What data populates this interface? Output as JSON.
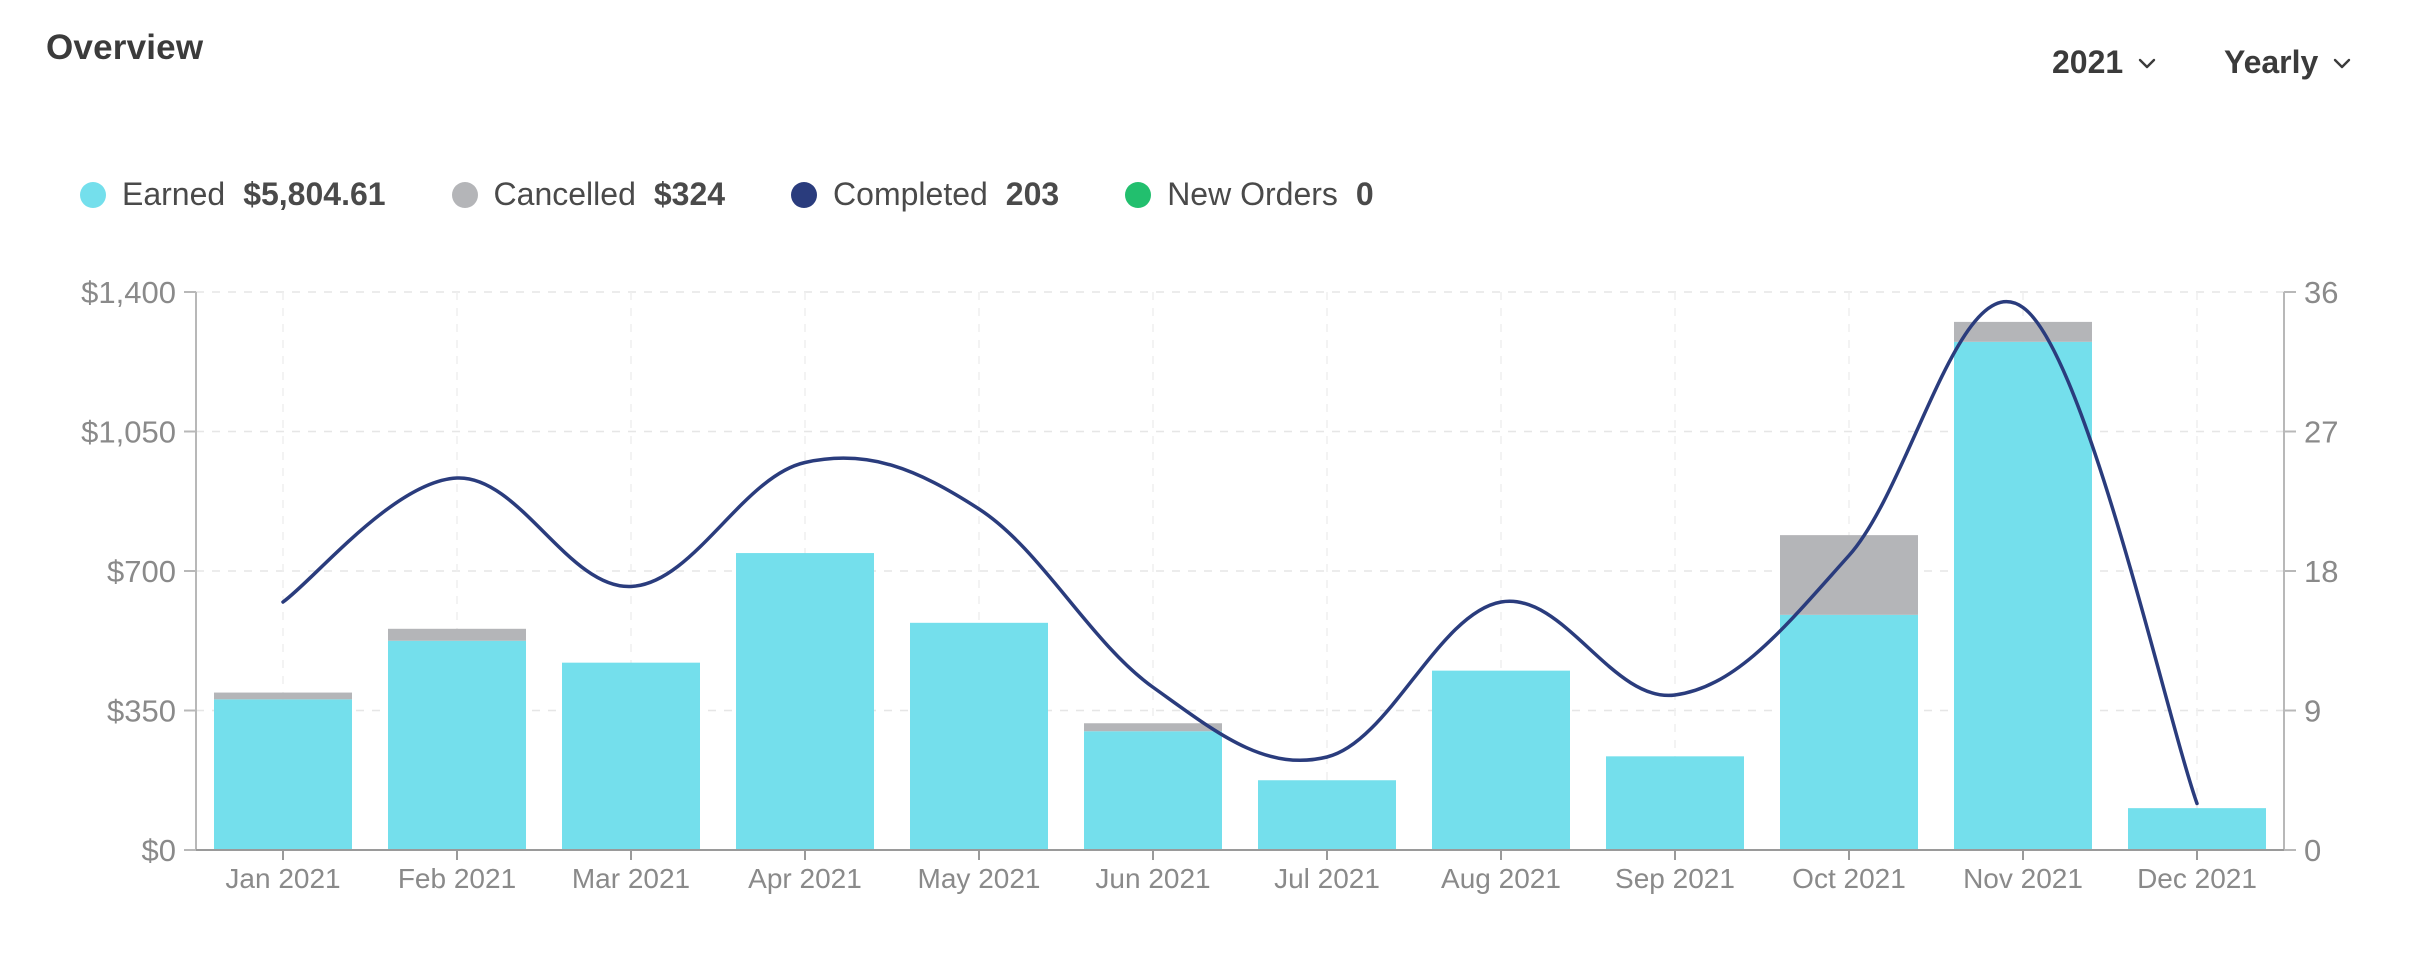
{
  "header": {
    "title": "Overview"
  },
  "controls": {
    "year": {
      "label": "2021",
      "icon": "chevron-down-icon"
    },
    "period": {
      "label": "Yearly",
      "icon": "chevron-down-icon"
    }
  },
  "legend": [
    {
      "label": "Earned",
      "value": "$5,804.61",
      "color": "#74dfec"
    },
    {
      "label": "Cancelled",
      "value": "$324",
      "color": "#b4b5b8"
    },
    {
      "label": "Completed",
      "value": "203",
      "color": "#2a3c7d"
    },
    {
      "label": "New Orders",
      "value": "0",
      "color": "#22bf6e"
    }
  ],
  "chart_data": {
    "type": "bar",
    "stacked": true,
    "categories": [
      "Jan 2021",
      "Feb 2021",
      "Mar 2021",
      "Apr 2021",
      "May 2021",
      "Jun 2021",
      "Jul 2021",
      "Aug 2021",
      "Sep 2021",
      "Oct 2021",
      "Nov 2021",
      "Dec 2021"
    ],
    "series": [
      {
        "name": "Earned",
        "type": "bar",
        "axis": "left",
        "color": "#74dfec",
        "values": [
          378,
          525,
          470,
          745,
          570,
          298,
          175,
          450,
          235,
          590,
          1275,
          105
        ]
      },
      {
        "name": "Cancelled",
        "type": "bar",
        "axis": "left",
        "color": "#b4b5b8",
        "values": [
          17,
          30,
          0,
          0,
          0,
          20,
          0,
          0,
          0,
          200,
          50,
          0
        ]
      },
      {
        "name": "Completed",
        "type": "line",
        "axis": "right",
        "color": "#2a3c7d",
        "values": [
          16,
          24,
          17,
          25,
          22,
          10.5,
          6,
          16,
          10,
          19,
          35,
          3
        ]
      }
    ],
    "y_left": {
      "min": 0,
      "max": 1400,
      "ticks": [
        "$0",
        "$350",
        "$700",
        "$1,050",
        "$1,400"
      ]
    },
    "y_right": {
      "min": 0,
      "max": 36,
      "ticks": [
        "0",
        "9",
        "18",
        "27",
        "36"
      ]
    },
    "grid": true
  }
}
